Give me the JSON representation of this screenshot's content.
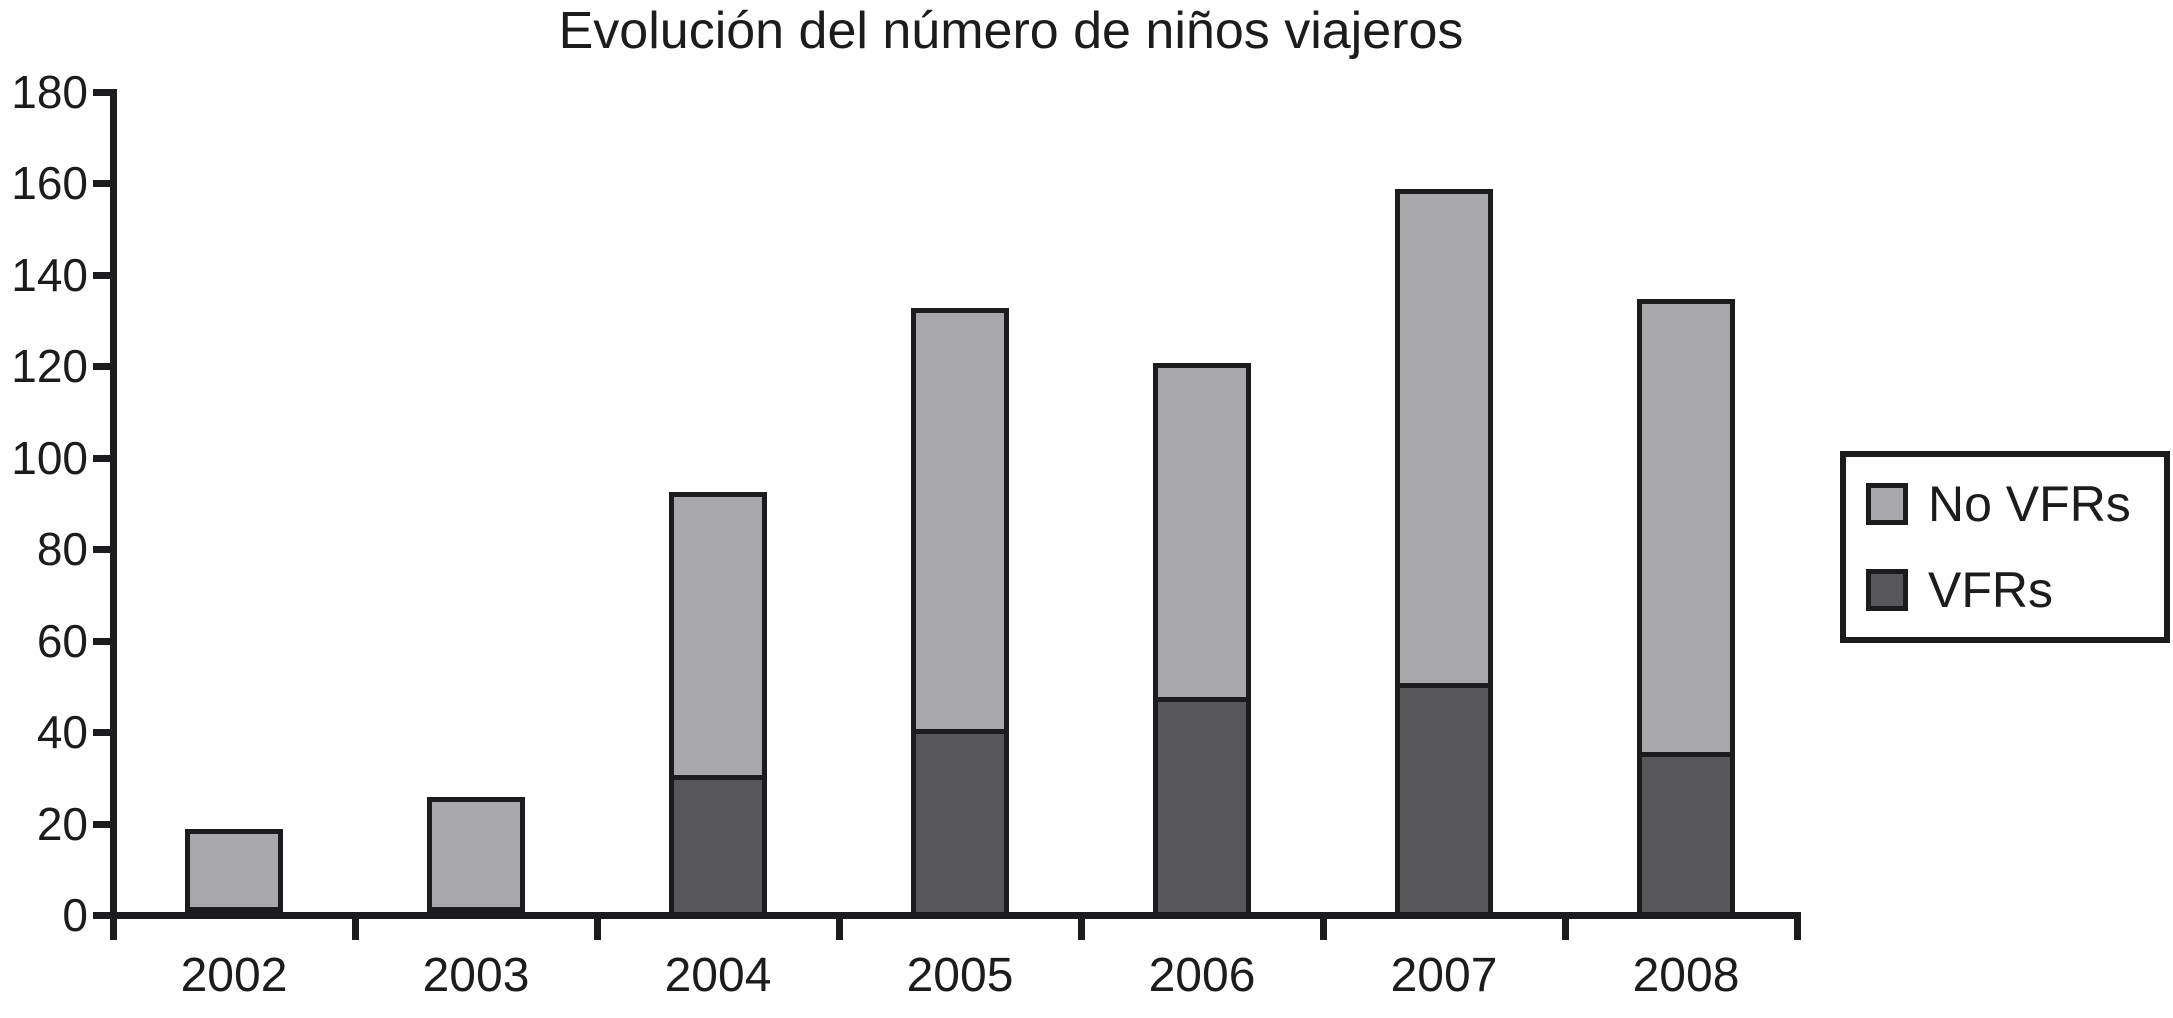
{
  "chart_data": {
    "type": "bar",
    "subtype": "stacked-vertical",
    "title": "Evolución del número de niños viajeros",
    "categories": [
      "2002",
      "2003",
      "2004",
      "2005",
      "2006",
      "2007",
      "2008"
    ],
    "series": [
      {
        "name": "No VFRs",
        "color": "#a8a8aa",
        "values": [
          17,
          24,
          62,
          92,
          73,
          108,
          99
        ]
      },
      {
        "name": "VFRs",
        "color": "#57575a",
        "values": [
          1,
          1,
          30,
          40,
          47,
          50,
          35
        ]
      }
    ],
    "stacked_totals": [
      18,
      25,
      92,
      132,
      120,
      158,
      134
    ],
    "xlabel": "",
    "ylabel": "",
    "ylim": [
      0,
      180
    ],
    "y_ticks": [
      0,
      20,
      40,
      60,
      80,
      100,
      120,
      140,
      160,
      180
    ],
    "grid": false,
    "legend_position": "right",
    "axis_color": "#1c1c1e",
    "background_color": "#ffffff"
  }
}
